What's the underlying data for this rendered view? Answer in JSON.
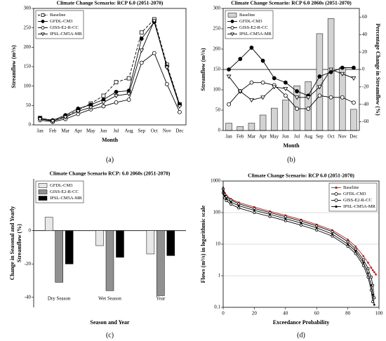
{
  "chart_data": [
    {
      "type": "line",
      "title": "Climate Change Scenario: RCP 6.0 (2051-2070)",
      "caption": "(a)",
      "xlabel": "Month",
      "ylabel": "Streamflow (m³/s)",
      "categories": [
        "Jan",
        "Feb",
        "Mar",
        "Apr",
        "May",
        "Jun",
        "Jul",
        "Aug",
        "Sep",
        "Oct",
        "Nov",
        "Dec"
      ],
      "ylim": [
        0,
        300
      ],
      "yticks": [
        0,
        50,
        100,
        150,
        200,
        250,
        300
      ],
      "legend": "upper left",
      "series": [
        {
          "name": "Baseline",
          "color": "#000000",
          "marker": "square-open",
          "dash": true,
          "values": [
            18,
            10,
            22,
            38,
            55,
            75,
            110,
            120,
            238,
            272,
            155,
            53
          ]
        },
        {
          "name": "GFDL-CM3",
          "color": "#000000",
          "marker": "circle-filled",
          "values": [
            17,
            12,
            25,
            42,
            52,
            65,
            85,
            88,
            222,
            265,
            150,
            52
          ]
        },
        {
          "name": "GISS-E2-R-CC",
          "color": "#000000",
          "marker": "circle-open",
          "values": [
            12,
            8,
            15,
            28,
            40,
            48,
            58,
            65,
            160,
            185,
            105,
            33
          ]
        },
        {
          "name": "IPSL-CM5A-MR",
          "color": "#000000",
          "marker": "triangle-down",
          "values": [
            15,
            10,
            20,
            35,
            45,
            58,
            75,
            80,
            192,
            268,
            148,
            48
          ]
        }
      ]
    },
    {
      "type": "combo",
      "title": "Climate Change Scenario: RCP 6.0 2060s (2051-2070)",
      "caption": "(b)",
      "xlabel": "Month",
      "ylabel": "Streamflow (m³/s)",
      "y2label": "Percentage Change in Streamflow (%)",
      "categories": [
        "Jan",
        "Feb",
        "Mar",
        "Apr",
        "May",
        "Jun",
        "Jul",
        "Aug",
        "Sep",
        "Oct",
        "Nov",
        "Dec"
      ],
      "ylim": [
        0,
        300
      ],
      "yticks": [
        0,
        50,
        100,
        150,
        200,
        250,
        300
      ],
      "y2lim": [
        -70,
        70
      ],
      "y2ticks": [
        -60,
        -40,
        -20,
        0,
        20,
        40,
        60
      ],
      "legend": "upper left",
      "series": [
        {
          "name": "Baseline",
          "kind": "bar",
          "color": "#d3d3d3",
          "values": [
            18,
            10,
            18,
            38,
            55,
            75,
            110,
            120,
            238,
            275,
            155,
            52
          ]
        },
        {
          "name": "GFDL-CM3",
          "kind": "line",
          "axis": "y2",
          "color": "#000000",
          "marker": "circle-filled",
          "values": [
            0,
            12,
            25,
            10,
            -10,
            -15,
            -25,
            -30,
            -8,
            -3,
            2,
            2
          ]
        },
        {
          "name": "GISS-E2-R-CC",
          "kind": "line",
          "axis": "y2",
          "color": "#000000",
          "marker": "circle-open",
          "values": [
            -40,
            -25,
            -15,
            -15,
            -18,
            -30,
            -45,
            -45,
            -30,
            -32,
            -32,
            -38
          ]
        },
        {
          "name": "IPSL-CM5A-MR",
          "kind": "line",
          "axis": "y2",
          "color": "#000000",
          "marker": "triangle-down",
          "values": [
            -8,
            -25,
            -35,
            -32,
            -20,
            -22,
            -32,
            -32,
            -20,
            0,
            -5,
            -10
          ]
        }
      ]
    },
    {
      "type": "bar",
      "title": "Climate Change Scenario RCP: 6.0 2060s (2051-2070)",
      "caption": "(c)",
      "xlabel": "Season and Year",
      "ylabel": [
        "Change in Seasonal and Yearly",
        "Streamflow (%)"
      ],
      "categories": [
        "Dry Season",
        "Wet Season",
        "Year"
      ],
      "ylim": [
        -46,
        31
      ],
      "yticks": [
        -40,
        -20,
        0
      ],
      "legend": "upper left",
      "frame": false,
      "series": [
        {
          "name": "GFDL-CM3",
          "color": "#e8e8e8",
          "values": [
            8,
            -9,
            -14
          ]
        },
        {
          "name": "GISS-E2-R-CC",
          "color": "#909090",
          "values": [
            -31,
            -36,
            -39
          ]
        },
        {
          "name": "IPSL-CM5A-MR",
          "color": "#000000",
          "values": [
            -20,
            -16,
            -15
          ]
        }
      ]
    },
    {
      "type": "line",
      "title": "Climate Change Scenario: RCP 6.0 (2051-2070)",
      "caption": "(d)",
      "xlabel": "Exceedance Probability",
      "ylabel": "Flows (m³/s) in logarithmic scale",
      "x": [
        0,
        1,
        2,
        5,
        10,
        20,
        30,
        40,
        50,
        60,
        70,
        80,
        85,
        90,
        93,
        95,
        96,
        97,
        98
      ],
      "xlim": [
        0,
        100
      ],
      "xticks": [
        0,
        20,
        40,
        60,
        80,
        100
      ],
      "log": true,
      "ylim": [
        0.1,
        1000
      ],
      "yticks": [
        0.1,
        1,
        10,
        100,
        1000
      ],
      "grid": true,
      "legend": "upper right",
      "series": [
        {
          "name": "Baseline",
          "color": "#b22222",
          "marker": "dot",
          "values": [
            620,
            420,
            350,
            270,
            210,
            150,
            110,
            82,
            60,
            42,
            28,
            14,
            8.5,
            4.2,
            2.6,
            1.8,
            1.5,
            1.3,
            1.1
          ]
        },
        {
          "name": "GFDL-CM3",
          "color": "#000000",
          "marker": "circle-open",
          "values": [
            560,
            380,
            320,
            250,
            190,
            135,
            100,
            74,
            54,
            38,
            25,
            12,
            7,
            3.2,
            1.7,
            0.9,
            0.5,
            0.2,
            null
          ]
        },
        {
          "name": "GISS-E2-R-CC",
          "color": "#000000",
          "marker": "circle-open",
          "values": [
            420,
            290,
            240,
            185,
            140,
            100,
            75,
            55,
            40,
            28,
            18,
            8.5,
            5,
            2.1,
            0.9,
            0.35,
            0.15,
            null,
            null
          ]
        },
        {
          "name": "IPSL-CM5A-MR",
          "color": "#000000",
          "marker": "dot",
          "values": [
            480,
            330,
            280,
            215,
            165,
            118,
            88,
            64,
            47,
            33,
            21,
            10,
            6,
            2.6,
            1.2,
            0.5,
            0.25,
            0.12,
            null
          ]
        }
      ]
    }
  ]
}
